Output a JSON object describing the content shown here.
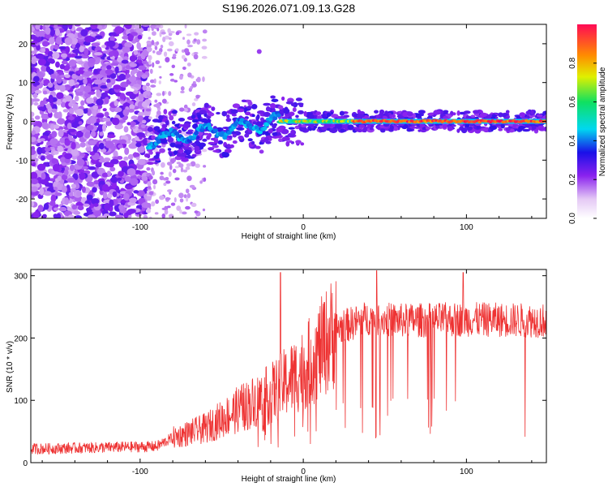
{
  "title": "S196.2026.071.09.13.G28",
  "chart_data": [
    {
      "type": "heatmap",
      "title": "S196.2026.071.09.13.G28",
      "xlabel": "Height of straight line (km)",
      "ylabel": "Frequency (Hz)",
      "xlim": [
        -167,
        149
      ],
      "ylim": [
        -25,
        25
      ],
      "xticks": [
        -100,
        0,
        100
      ],
      "yticks": [
        -20,
        -10,
        0,
        10,
        20
      ],
      "xtick_labels": [
        "-100",
        "0",
        "100"
      ],
      "ytick_labels": [
        "-20",
        "-10",
        "0",
        "10",
        "20"
      ],
      "colorbar": {
        "label": "Normalized spectral amplitude",
        "range": [
          0,
          1
        ],
        "ticks": [
          0.0,
          0.2,
          0.4,
          0.6,
          0.8
        ],
        "tick_labels": [
          "0.0",
          "0.2",
          "0.4",
          "0.6",
          "0.8"
        ],
        "colormap": "rainbow (white → violet → blue → cyan → green → yellow → red)"
      },
      "features": {
        "noise_region_x": [
          -167,
          -95
        ],
        "sparse_region_x": [
          -95,
          -60
        ],
        "signal_onset_x": -95,
        "signal_freq_hz": 0,
        "signal_wander_x_range": [
          -95,
          -15
        ],
        "strong_signal_x_range": [
          -15,
          149
        ],
        "outlier_blob": {
          "x": -27,
          "freq": 18
        }
      }
    },
    {
      "type": "line",
      "xlabel": "Height of straight line (km)",
      "ylabel": "SNR (10 * v/v)",
      "xlim": [
        -167,
        149
      ],
      "ylim": [
        0,
        310
      ],
      "xticks": [
        -100,
        0,
        100
      ],
      "yticks": [
        0,
        100,
        200,
        300
      ],
      "xtick_labels": [
        "-100",
        "0",
        "100"
      ],
      "ytick_labels": [
        "0",
        "100",
        "200",
        "300"
      ],
      "series": [
        {
          "name": "SNR",
          "color": "#ee3333",
          "profile": [
            {
              "x": -167,
              "y": 22
            },
            {
              "x": -90,
              "y": 26
            },
            {
              "x": -80,
              "y": 40
            },
            {
              "x": -60,
              "y": 55
            },
            {
              "x": -40,
              "y": 85
            },
            {
              "x": -20,
              "y": 110
            },
            {
              "x": 0,
              "y": 150
            },
            {
              "x": 10,
              "y": 180
            },
            {
              "x": 20,
              "y": 215
            },
            {
              "x": 40,
              "y": 232
            },
            {
              "x": 60,
              "y": 228
            },
            {
              "x": 100,
              "y": 230
            },
            {
              "x": 149,
              "y": 228
            }
          ],
          "peaks": [
            {
              "x": -14,
              "y": 305
            },
            {
              "x": 45,
              "y": 310
            },
            {
              "x": 98,
              "y": 305
            }
          ]
        }
      ]
    }
  ]
}
